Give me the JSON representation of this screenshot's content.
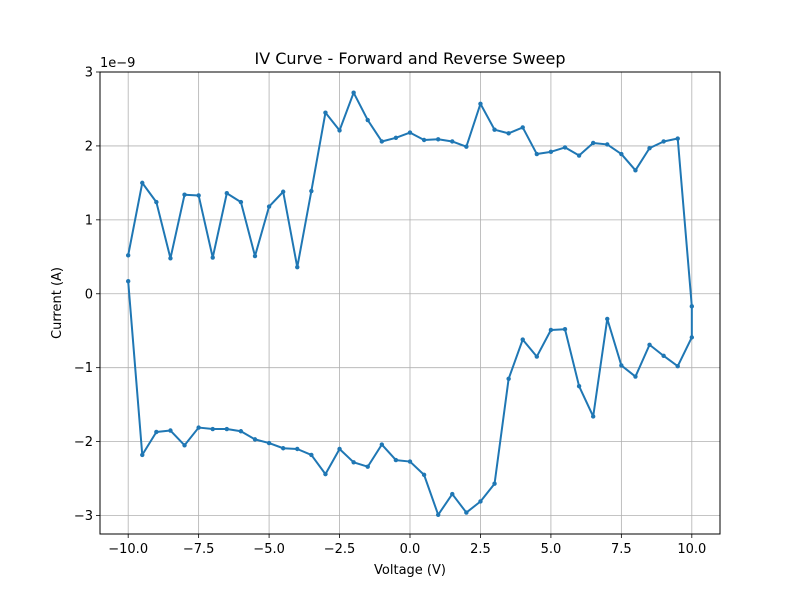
{
  "chart_data": {
    "type": "line",
    "title": "IV Curve - Forward and Reverse Sweep",
    "xlabel": "Voltage (V)",
    "ylabel": "Current (A)",
    "y_offset_label": "1e−9",
    "xlim": [
      -11.0,
      11.0
    ],
    "ylim": [
      -3.25,
      3.0
    ],
    "xticks": [
      -10.0,
      -7.5,
      -5.0,
      -2.5,
      0.0,
      2.5,
      5.0,
      7.5,
      10.0
    ],
    "xtick_labels": [
      "−10.0",
      "−7.5",
      "−5.0",
      "−2.5",
      "0.0",
      "2.5",
      "5.0",
      "7.5",
      "10.0"
    ],
    "yticks": [
      -3,
      -2,
      -1,
      0,
      1,
      2,
      3
    ],
    "ytick_labels": [
      "−3",
      "−2",
      "−1",
      "0",
      "1",
      "2",
      "3"
    ],
    "grid": true,
    "color": "#1f77b4",
    "series": [
      {
        "x": [
          -10.0,
          -9.5,
          -9.0,
          -8.5,
          -8.0,
          -7.5,
          -7.0,
          -6.5,
          -6.0,
          -5.5,
          -5.0,
          -4.5,
          -4.0,
          -3.5,
          -3.0,
          -2.5,
          -2.0,
          -1.5,
          -1.0,
          -0.5,
          0.0,
          0.5,
          1.0,
          1.5,
          2.0,
          2.5,
          3.0,
          3.5,
          4.0,
          4.5,
          5.0,
          5.5,
          6.0,
          6.5,
          7.0,
          7.5,
          8.0,
          8.5,
          9.0,
          9.5,
          10.0,
          10.0,
          9.5,
          9.0,
          8.5,
          8.0,
          7.5,
          7.0,
          6.5,
          6.0,
          5.5,
          5.0,
          4.5,
          4.0,
          3.5,
          3.0,
          2.5,
          2.0,
          1.5,
          1.0,
          0.5,
          0.0,
          -0.5,
          -1.0,
          -1.5,
          -2.0,
          -2.5,
          -3.0,
          -3.5,
          -4.0,
          -4.5,
          -5.0,
          -5.5,
          -6.0,
          -6.5,
          -7.0,
          -7.5,
          -8.0,
          -8.5,
          -9.0,
          -9.5,
          -10.0
        ],
        "y": [
          0.17,
          -2.18,
          -1.87,
          -1.85,
          -2.05,
          -1.81,
          -1.83,
          -1.83,
          -1.86,
          -1.97,
          -2.02,
          -2.09,
          -2.1,
          -2.18,
          -2.44,
          -2.1,
          -2.28,
          -2.34,
          -2.04,
          -2.25,
          -2.27,
          -2.45,
          -2.99,
          -2.71,
          -2.96,
          -2.81,
          -2.57,
          -1.15,
          -0.62,
          -0.85,
          -0.49,
          -0.48,
          -1.25,
          -1.66,
          -0.34,
          -0.97,
          -1.12,
          -0.69,
          -0.84,
          -0.98,
          -0.59,
          -0.17,
          2.1,
          2.06,
          1.97,
          1.67,
          1.89,
          2.02,
          2.04,
          1.87,
          1.98,
          1.92,
          1.89,
          2.25,
          2.17,
          2.22,
          2.57,
          1.99,
          2.06,
          2.09,
          2.08,
          2.18,
          2.11,
          2.06,
          2.35,
          2.72,
          2.21,
          2.45,
          1.39,
          0.36,
          1.38,
          1.18,
          0.51,
          1.24,
          1.36,
          0.49,
          1.33,
          1.34,
          0.48,
          1.24,
          1.5,
          0.52
        ]
      }
    ]
  }
}
